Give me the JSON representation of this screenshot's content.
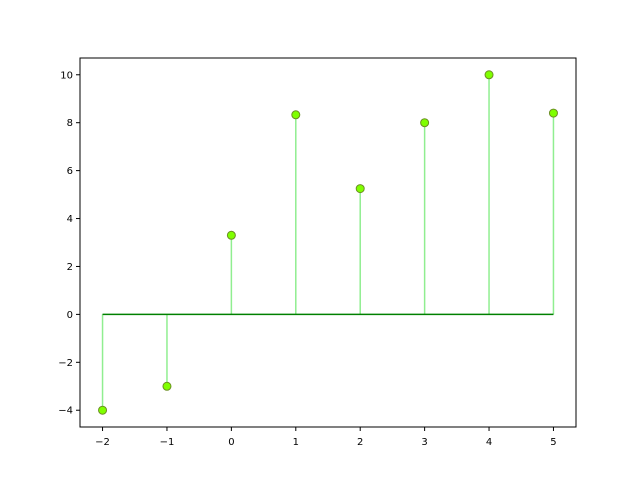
{
  "chart_data": {
    "type": "stem",
    "x": [
      -2,
      -1,
      0,
      1,
      2,
      3,
      4,
      5
    ],
    "y": [
      -4,
      -3,
      3.3,
      8.33,
      5.25,
      8,
      10,
      8.4
    ],
    "baseline": 0,
    "xlim": [
      -2.35,
      5.35
    ],
    "ylim": [
      -4.7,
      10.7
    ],
    "xticks": [
      -2,
      -1,
      0,
      1,
      2,
      3,
      4,
      5
    ],
    "xtick_labels": [
      "−2",
      "−1",
      "0",
      "1",
      "2",
      "3",
      "4",
      "5"
    ],
    "yticks": [
      -4,
      -2,
      0,
      2,
      4,
      6,
      8,
      10
    ],
    "ytick_labels": [
      "−4",
      "−2",
      "0",
      "2",
      "4",
      "6",
      "8",
      "10"
    ],
    "grid": false,
    "title": "",
    "xlabel": "",
    "ylabel": "",
    "colors": {
      "stem": "#90ee90",
      "marker_fill": "#7fff00",
      "marker_edge": "#6b8e23",
      "baseline": "#008000"
    }
  }
}
